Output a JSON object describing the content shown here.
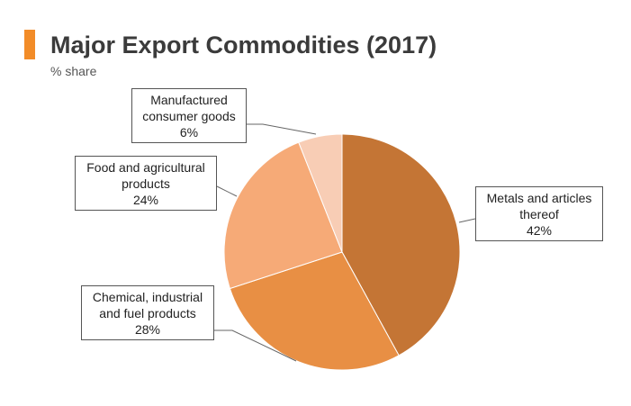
{
  "header": {
    "title": "Major Export Commodities (2017)",
    "subtitle": "% share",
    "accent_color": "#f28c28"
  },
  "chart_data": {
    "type": "pie",
    "title": "Major Export Commodities (2017)",
    "subtitle": "% share",
    "slices": [
      {
        "label": "Metals and articles thereof",
        "value": 42,
        "value_label": "42%",
        "color": "#c47535"
      },
      {
        "label": "Chemical, industrial and fuel products",
        "value": 28,
        "value_label": "28%",
        "color": "#e88f44"
      },
      {
        "label": "Food and agricultural products",
        "value": 24,
        "value_label": "24%",
        "color": "#f6aa77"
      },
      {
        "label": "Manufactured consumer goods",
        "value": 6,
        "value_label": "6%",
        "color": "#f8cdb5"
      }
    ],
    "start_angle": "12 o'clock",
    "direction": "clockwise",
    "legend": "none"
  },
  "callouts": {
    "metals": {
      "line1": "Metals and articles",
      "line2": "thereof",
      "value": "42%"
    },
    "chemical": {
      "line1": "Chemical, industrial",
      "line2": "and fuel products",
      "value": "28%"
    },
    "food": {
      "line1": "Food and agricultural",
      "line2": "products",
      "value": "24%"
    },
    "manufactured": {
      "line1": "Manufactured",
      "line2": "consumer goods",
      "value": "6%"
    }
  }
}
